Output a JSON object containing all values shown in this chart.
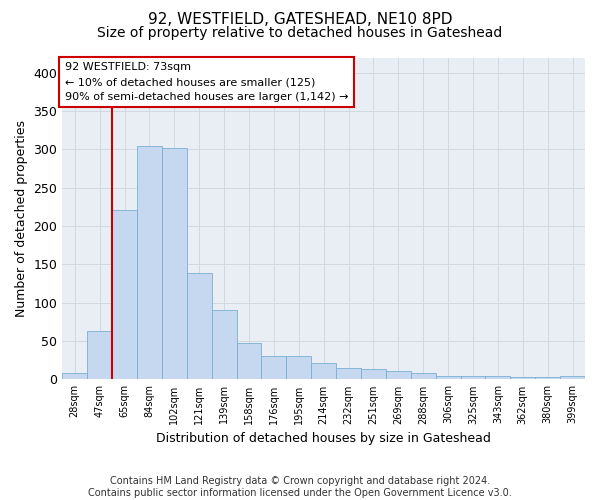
{
  "title": "92, WESTFIELD, GATESHEAD, NE10 8PD",
  "subtitle": "Size of property relative to detached houses in Gateshead",
  "xlabel": "Distribution of detached houses by size in Gateshead",
  "ylabel": "Number of detached properties",
  "categories": [
    "28sqm",
    "47sqm",
    "65sqm",
    "84sqm",
    "102sqm",
    "121sqm",
    "139sqm",
    "158sqm",
    "176sqm",
    "195sqm",
    "214sqm",
    "232sqm",
    "251sqm",
    "269sqm",
    "288sqm",
    "306sqm",
    "325sqm",
    "343sqm",
    "362sqm",
    "380sqm",
    "399sqm"
  ],
  "values": [
    8,
    63,
    221,
    305,
    302,
    139,
    90,
    47,
    31,
    31,
    21,
    15,
    13,
    11,
    9,
    4,
    5,
    4,
    3,
    3,
    4
  ],
  "bar_color": "#c5d8f0",
  "bar_edge_color": "#7aafd4",
  "grid_color": "#d0d8e0",
  "annotation_line1": "92 WESTFIELD: 73sqm",
  "annotation_line2": "← 10% of detached houses are smaller (125)",
  "annotation_line3": "90% of semi-detached houses are larger (1,142) →",
  "annotation_box_facecolor": "#ffffff",
  "annotation_box_edgecolor": "#cc0000",
  "vline_x": 1.5,
  "vline_color": "#cc0000",
  "footer_line1": "Contains HM Land Registry data © Crown copyright and database right 2024.",
  "footer_line2": "Contains public sector information licensed under the Open Government Licence v3.0.",
  "ylim_max": 420,
  "yticks": [
    0,
    50,
    100,
    150,
    200,
    250,
    300,
    350,
    400
  ],
  "fig_bg": "#ffffff",
  "ax_bg": "#e8eef4"
}
